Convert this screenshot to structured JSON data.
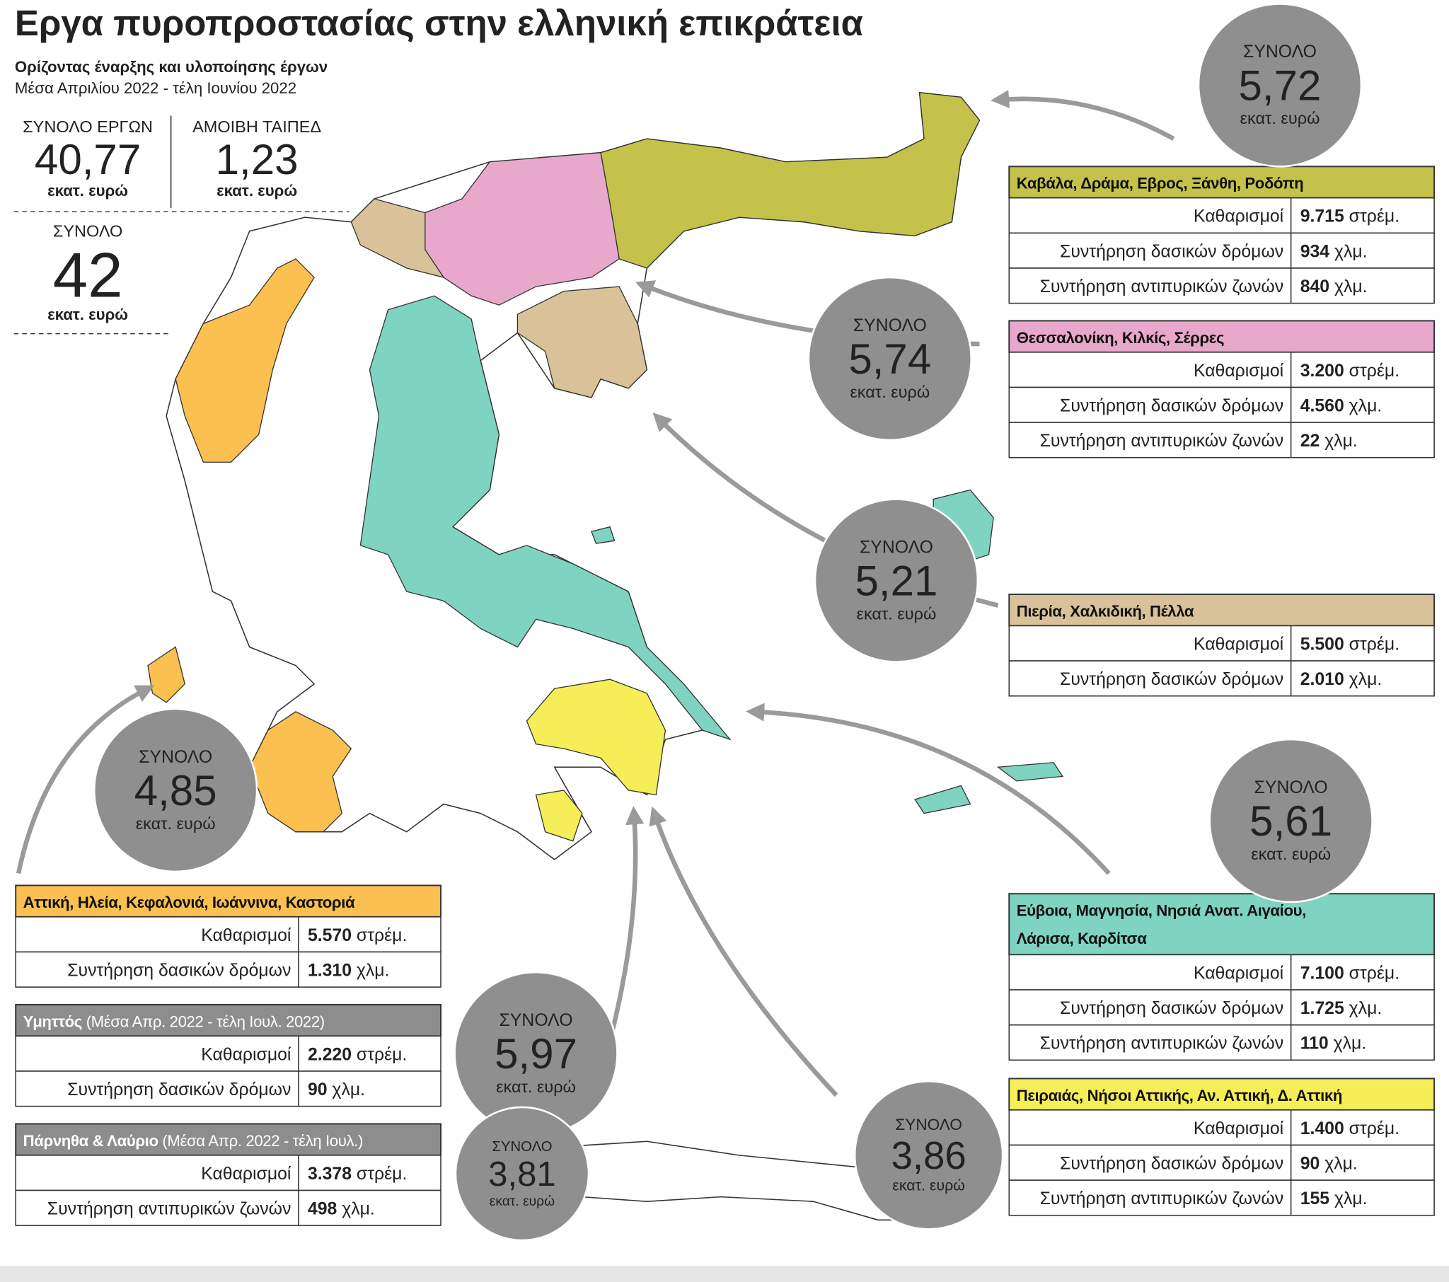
{
  "header": {
    "title": "Εργα πυροπροστασίας στην ελληνική επικράτεια",
    "subtitle": "Ορίζοντας έναρξης και υλοποίησης έργων",
    "period": "Μέσα Απριλίου 2022 - τέλη Ιουνίου 2022"
  },
  "totals": {
    "projects": {
      "label": "ΣΥΝΟΛΟ ΕΡΓΩΝ",
      "value": "40,77",
      "unit": "εκατ. ευρώ"
    },
    "taiped": {
      "label": "ΑΜΟΙΒΗ ΤΑΙΠΕΔ",
      "value": "1,23",
      "unit": "εκατ. ευρώ"
    },
    "total": {
      "label": "ΣΥΝΟΛΟ",
      "value": "42",
      "unit": "εκατ. ευρώ"
    }
  },
  "boxes": [
    {
      "title": [
        "Καβάλα, Δράμα, Εβρος, Ξάνθη, Ροδόπη"
      ],
      "color": "#c4c24a",
      "rows": [
        {
          "label": "Καθαρισμοί",
          "value": "9.715",
          "unit": "στρέμ."
        },
        {
          "label": "Συντήρηση δασικών δρόμων",
          "value": "934",
          "unit": "χλμ."
        },
        {
          "label": "Συντήρηση αντιπυρικών ζωνών",
          "value": "840",
          "unit": "χλμ."
        }
      ]
    },
    {
      "title": [
        "Θεσσαλονίκη, Κιλκίς, Σέρρες"
      ],
      "color": "#e8a8cc",
      "rows": [
        {
          "label": "Καθαρισμοί",
          "value": "3.200",
          "unit": "στρέμ."
        },
        {
          "label": "Συντήρηση δασικών δρόμων",
          "value": "4.560",
          "unit": "χλμ."
        },
        {
          "label": "Συντήρηση αντιπυρικών ζωνών",
          "value": "22",
          "unit": "χλμ."
        }
      ]
    },
    {
      "title": [
        "Πιερία, Χαλκιδική, Πέλλα"
      ],
      "color": "#d9c299",
      "rows": [
        {
          "label": "Καθαρισμοί",
          "value": "5.500",
          "unit": "στρέμ."
        },
        {
          "label": "Συντήρηση δασικών δρόμων",
          "value": "2.010",
          "unit": "χλμ."
        }
      ]
    },
    {
      "title": [
        "Εύβοια, Μαγνησία, Νησιά Ανατ. Αιγαίου,",
        "Λάρισα, Καρδίτσα"
      ],
      "color": "#7fd3c1",
      "rows": [
        {
          "label": "Καθαρισμοί",
          "value": "7.100",
          "unit": "στρέμ."
        },
        {
          "label": "Συντήρηση δασικών δρόμων",
          "value": "1.725",
          "unit": "χλμ."
        },
        {
          "label": "Συντήρηση αντιπυρικών ζωνών",
          "value": "110",
          "unit": "χλμ."
        }
      ]
    },
    {
      "title": [
        "Πειραιάς, Νήσοι Αττικής, Αν. Αττική, Δ. Αττική"
      ],
      "color": "#f6ee58",
      "rows": [
        {
          "label": "Καθαρισμοί",
          "value": "1.400",
          "unit": "στρέμ."
        },
        {
          "label": "Συντήρηση δασικών δρόμων",
          "value": "90",
          "unit": "χλμ."
        },
        {
          "label": "Συντήρηση αντιπυρικών ζωνών",
          "value": "155",
          "unit": "χλμ."
        }
      ]
    },
    {
      "title": [
        "Αττική, Ηλεία, Κεφαλονιά, Ιωάννινα, Καστοριά"
      ],
      "color": "#fbc050",
      "rows": [
        {
          "label": "Καθαρισμοί",
          "value": "5.570",
          "unit": "στρέμ."
        },
        {
          "label": "Συντήρηση δασικών δρόμων",
          "value": "1.310",
          "unit": "χλμ."
        }
      ]
    },
    {
      "title": [
        "Υμηττός"
      ],
      "note": "(Μέσα Απρ. 2022 - τέλη Ιουλ. 2022)",
      "color": "#8d8d8d",
      "title_color": "#ffffff",
      "rows": [
        {
          "label": "Καθαρισμοί",
          "value": "2.220",
          "unit": "στρέμ."
        },
        {
          "label": "Συντήρηση δασικών δρόμων",
          "value": "90",
          "unit": "χλμ."
        }
      ]
    },
    {
      "title": [
        "Πάρνηθα & Λαύριο"
      ],
      "note": "(Μέσα Απρ. 2022 - τέλη Ιουλ.)",
      "color": "#8d8d8d",
      "title_color": "#ffffff",
      "rows": [
        {
          "label": "Καθαρισμοί",
          "value": "3.378",
          "unit": "στρέμ."
        },
        {
          "label": "Συντήρηση αντιπυρικών ζωνών",
          "value": "498",
          "unit": "χλμ."
        }
      ]
    }
  ],
  "bubbles": [
    {
      "label": "ΣΥΝΟΛΟ",
      "value": "5,72",
      "unit": "εκατ. ευρώ"
    },
    {
      "label": "ΣΥΝΟΛΟ",
      "value": "5,74",
      "unit": "εκατ. ευρώ"
    },
    {
      "label": "ΣΥΝΟΛΟ",
      "value": "5,21",
      "unit": "εκατ. ευρώ"
    },
    {
      "label": "ΣΥΝΟΛΟ",
      "value": "5,61",
      "unit": "εκατ. ευρώ"
    },
    {
      "label": "ΣΥΝΟΛΟ",
      "value": "4,85",
      "unit": "εκατ. ευρώ"
    },
    {
      "label": "ΣΥΝΟΛΟ",
      "value": "5,97",
      "unit": "εκατ. ευρώ"
    },
    {
      "label": "ΣΥΝΟΛΟ",
      "value": "3,81",
      "unit": "εκατ. ευρώ"
    },
    {
      "label": "ΣΥΝΟΛΟ",
      "value": "3,86",
      "unit": "εκατ. ευρώ"
    }
  ]
}
